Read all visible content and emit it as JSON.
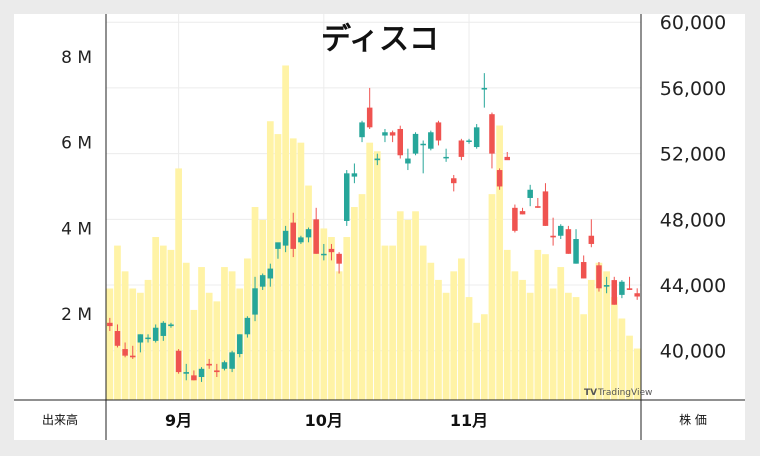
{
  "chart_data": {
    "type": "candlestick",
    "title": "ディスコ",
    "left_axis": {
      "label": "出来高",
      "ticks": [
        {
          "value": 2000000,
          "label": "2 M"
        },
        {
          "value": 4000000,
          "label": "4 M"
        },
        {
          "value": 6000000,
          "label": "6 M"
        },
        {
          "value": 8000000,
          "label": "8 M"
        }
      ],
      "range": [
        0,
        9000000
      ]
    },
    "right_axis": {
      "label": "株 価",
      "ticks": [
        {
          "value": 40000,
          "label": "40,000"
        },
        {
          "value": 44000,
          "label": "44,000"
        },
        {
          "value": 48000,
          "label": "48,000"
        },
        {
          "value": 52000,
          "label": "52,000"
        },
        {
          "value": 56000,
          "label": "56,000"
        },
        {
          "value": 60000,
          "label": "60,000"
        }
      ],
      "range": [
        37000,
        60500
      ]
    },
    "x_ticks": [
      {
        "index": 9,
        "label": "9月"
      },
      {
        "index": 28,
        "label": "10月"
      },
      {
        "index": 47,
        "label": "11月"
      }
    ],
    "attribution": "TradingView",
    "colors": {
      "up": "#26a69a",
      "down": "#ef5350",
      "volume": "#fff3a6",
      "grid": "#ececec"
    },
    "volume": [
      2600000,
      3600000,
      3000000,
      2600000,
      2500000,
      2800000,
      3800000,
      3600000,
      3500000,
      5400000,
      3200000,
      2100000,
      3100000,
      2500000,
      2300000,
      3100000,
      3000000,
      2600000,
      3300000,
      4500000,
      4200000,
      6500000,
      6200000,
      7800000,
      6100000,
      6000000,
      5000000,
      4200000,
      4000000,
      3800000,
      3000000,
      3800000,
      4500000,
      4800000,
      6000000,
      5800000,
      3600000,
      3600000,
      4400000,
      4200000,
      4400000,
      3600000,
      3200000,
      2800000,
      2500000,
      3000000,
      3300000,
      2400000,
      1800000,
      2000000,
      4800000,
      6400000,
      3500000,
      3000000,
      2800000,
      2500000,
      3500000,
      3400000,
      2600000,
      3100000,
      2500000,
      2400000,
      2000000,
      2800000,
      3200000,
      3000000,
      2400000,
      1900000,
      1500000,
      1200000
    ],
    "ohlc": [
      [
        41700,
        42000,
        41200,
        41500
      ],
      [
        41200,
        41600,
        40200,
        40300
      ],
      [
        40100,
        40500,
        39600,
        39700
      ],
      [
        39700,
        40300,
        39500,
        39600
      ],
      [
        40500,
        41000,
        39900,
        41000
      ],
      [
        40800,
        41000,
        40500,
        40800
      ],
      [
        40600,
        41600,
        40500,
        41400
      ],
      [
        40900,
        41800,
        40600,
        41700
      ],
      [
        41500,
        41700,
        41400,
        41600
      ],
      [
        40000,
        40100,
        38600,
        38700
      ],
      [
        38600,
        39200,
        38200,
        38700
      ],
      [
        38500,
        38800,
        38200,
        38200
      ],
      [
        38400,
        39000,
        38100,
        38900
      ],
      [
        39200,
        39500,
        38900,
        39100
      ],
      [
        38800,
        39200,
        38400,
        38700
      ],
      [
        38900,
        39400,
        38800,
        39300
      ],
      [
        38900,
        40000,
        38700,
        39900
      ],
      [
        39800,
        41000,
        39600,
        41000
      ],
      [
        41000,
        42100,
        40800,
        42000
      ],
      [
        42200,
        44500,
        41800,
        43800
      ],
      [
        43900,
        44700,
        43700,
        44600
      ],
      [
        44400,
        45300,
        43900,
        45000
      ],
      [
        46200,
        46500,
        45600,
        46600
      ],
      [
        46400,
        47600,
        46000,
        47300
      ],
      [
        47800,
        48400,
        45700,
        46200
      ],
      [
        46600,
        47000,
        46500,
        46900
      ],
      [
        46900,
        47500,
        46600,
        47400
      ],
      [
        48000,
        48700,
        45900,
        45900
      ],
      [
        45900,
        46500,
        45500,
        45900
      ],
      [
        46200,
        46500,
        45500,
        46000
      ],
      [
        45900,
        46000,
        44700,
        45300
      ],
      [
        47900,
        51000,
        47600,
        50800
      ],
      [
        50600,
        51400,
        50200,
        50800
      ],
      [
        53000,
        54000,
        52700,
        53900
      ],
      [
        54800,
        56000,
        53500,
        53600
      ],
      [
        51600,
        52000,
        51300,
        51700
      ],
      [
        53100,
        53500,
        52700,
        53300
      ],
      [
        53300,
        53400,
        52700,
        53100
      ],
      [
        53500,
        53700,
        51700,
        51900
      ],
      [
        51400,
        52300,
        51000,
        51700
      ],
      [
        52000,
        53300,
        51900,
        53200
      ],
      [
        52600,
        52800,
        50800,
        52600
      ],
      [
        52300,
        53400,
        52200,
        53300
      ],
      [
        53900,
        54000,
        52500,
        52800
      ],
      [
        51800,
        52300,
        51500,
        51800
      ],
      [
        50500,
        50700,
        49700,
        50200
      ],
      [
        52800,
        52900,
        51600,
        51800
      ],
      [
        52800,
        52900,
        52600,
        52800
      ],
      [
        52400,
        53800,
        52300,
        53600
      ],
      [
        55900,
        56900,
        54800,
        56000
      ],
      [
        54400,
        54500,
        51100,
        52000
      ],
      [
        51000,
        51100,
        49800,
        50000
      ],
      [
        51800,
        52100,
        51700,
        51600
      ],
      [
        48700,
        48900,
        47200,
        47300
      ],
      [
        48500,
        48700,
        48300,
        48300
      ],
      [
        49300,
        50100,
        48800,
        49800
      ],
      [
        48800,
        49300,
        48700,
        48700
      ],
      [
        49700,
        50200,
        47600,
        47600
      ],
      [
        47000,
        48100,
        46400,
        46900
      ],
      [
        47000,
        47700,
        46800,
        47600
      ],
      [
        47400,
        47600,
        45900,
        45900
      ],
      [
        45300,
        47400,
        45300,
        46800
      ],
      [
        45400,
        45800,
        44400,
        44400
      ],
      [
        47000,
        48000,
        46300,
        46500
      ],
      [
        45200,
        45400,
        43600,
        43800
      ],
      [
        43900,
        44500,
        43500,
        44000
      ],
      [
        44300,
        44500,
        42800,
        42800
      ],
      [
        43400,
        44300,
        43200,
        44200
      ],
      [
        43800,
        44500,
        43700,
        43700
      ],
      [
        43500,
        43800,
        43100,
        43300
      ]
    ]
  }
}
